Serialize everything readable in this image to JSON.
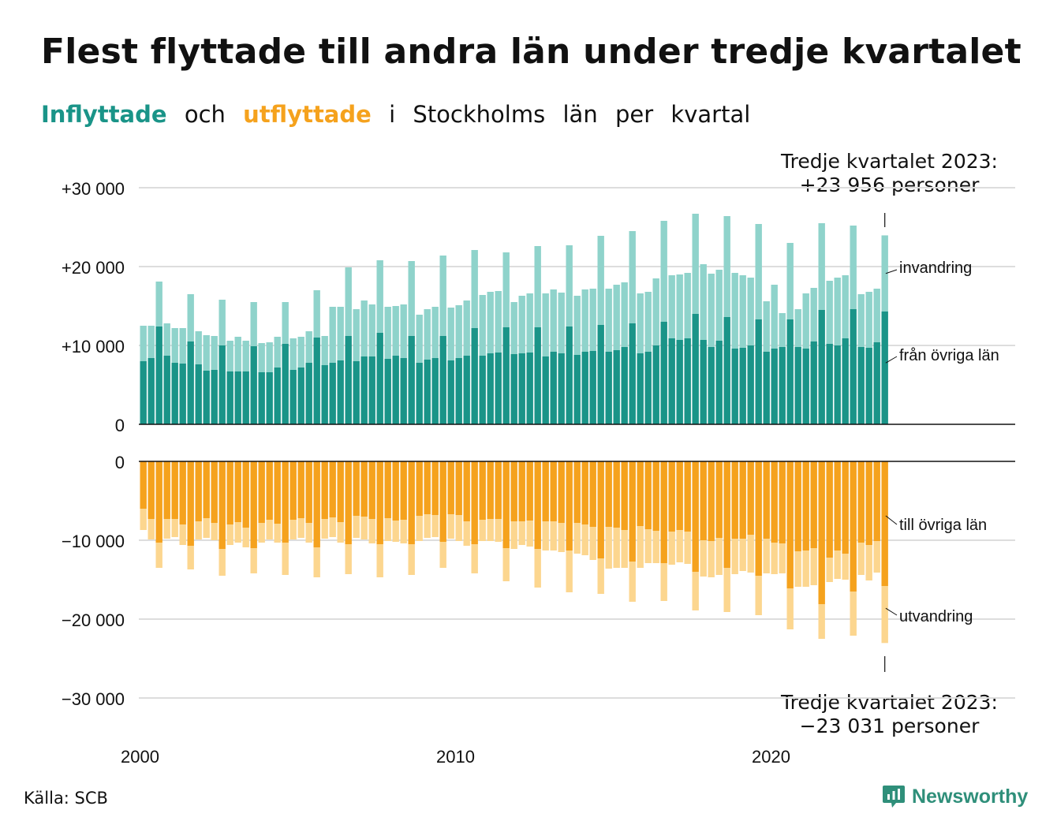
{
  "title": "Flest flyttade till andra län under tredje kvartalet",
  "subtitle": {
    "in_label": "Inflyttade",
    "och": "och",
    "out_label": "utflyttade",
    "rest": [
      "i",
      "Stockholms",
      "län",
      "per",
      "kvartal"
    ]
  },
  "colors": {
    "in_dark": "#1a9488",
    "in_light": "#8fd3cb",
    "out_dark": "#f5a21d",
    "out_light": "#fcd68f",
    "grid": "#dddddd"
  },
  "annotations": {
    "top_line1": "Tredje kvartalet 2023:",
    "top_line2": "+23 956 personer",
    "bottom_line1": "Tredje kvartalet 2023:",
    "bottom_line2": "−23 031 personer"
  },
  "source": "Källa: SCB",
  "brand": {
    "name": "Newsworthy",
    "icon": "newsworthy-logo-icon"
  },
  "chart_data": [
    {
      "type": "bar",
      "stacked": true,
      "categories": [
        "2000 Q1",
        "2000 Q2",
        "2000 Q3",
        "2000 Q4",
        "2001 Q1",
        "2001 Q2",
        "2001 Q3",
        "2001 Q4",
        "2002 Q1",
        "2002 Q2",
        "2002 Q3",
        "2002 Q4",
        "2003 Q1",
        "2003 Q2",
        "2003 Q3",
        "2003 Q4",
        "2004 Q1",
        "2004 Q2",
        "2004 Q3",
        "2004 Q4",
        "2005 Q1",
        "2005 Q2",
        "2005 Q3",
        "2005 Q4",
        "2006 Q1",
        "2006 Q2",
        "2006 Q3",
        "2006 Q4",
        "2007 Q1",
        "2007 Q2",
        "2007 Q3",
        "2007 Q4",
        "2008 Q1",
        "2008 Q2",
        "2008 Q3",
        "2008 Q4",
        "2009 Q1",
        "2009 Q2",
        "2009 Q3",
        "2009 Q4",
        "2010 Q1",
        "2010 Q2",
        "2010 Q3",
        "2010 Q4",
        "2011 Q1",
        "2011 Q2",
        "2011 Q3",
        "2011 Q4",
        "2012 Q1",
        "2012 Q2",
        "2012 Q3",
        "2012 Q4",
        "2013 Q1",
        "2013 Q2",
        "2013 Q3",
        "2013 Q4",
        "2014 Q1",
        "2014 Q2",
        "2014 Q3",
        "2014 Q4",
        "2015 Q1",
        "2015 Q2",
        "2015 Q3",
        "2015 Q4",
        "2016 Q1",
        "2016 Q2",
        "2016 Q3",
        "2016 Q4",
        "2017 Q1",
        "2017 Q2",
        "2017 Q3",
        "2017 Q4",
        "2018 Q1",
        "2018 Q2",
        "2018 Q3",
        "2018 Q4",
        "2019 Q1",
        "2019 Q2",
        "2019 Q3",
        "2019 Q4",
        "2020 Q1",
        "2020 Q2",
        "2020 Q3",
        "2020 Q4",
        "2021 Q1",
        "2021 Q2",
        "2021 Q3",
        "2021 Q4",
        "2022 Q1",
        "2022 Q2",
        "2022 Q3",
        "2022 Q4",
        "2023 Q1",
        "2023 Q2",
        "2023 Q3"
      ],
      "x_ticks": [
        "2000",
        "2010",
        "2020"
      ],
      "ylim": [
        0,
        30000
      ],
      "y_ticks": [
        "+30 000",
        "+20 000",
        "+10 000",
        "0"
      ],
      "series": [
        {
          "name": "från övriga län",
          "values": [
            8000,
            8400,
            12400,
            8700,
            7800,
            7700,
            10500,
            7600,
            6800,
            6900,
            10000,
            6700,
            6700,
            6700,
            9900,
            6600,
            6600,
            7200,
            10200,
            6900,
            7200,
            7800,
            11000,
            7500,
            7800,
            8100,
            11200,
            8000,
            8600,
            8600,
            11600,
            8300,
            8700,
            8400,
            11200,
            7800,
            8200,
            8400,
            11200,
            8100,
            8400,
            8700,
            12200,
            8700,
            9000,
            9100,
            12300,
            8900,
            9000,
            9100,
            12300,
            8600,
            9200,
            9000,
            12400,
            8800,
            9200,
            9300,
            12600,
            9200,
            9400,
            9800,
            12800,
            9000,
            9200,
            10000,
            13000,
            10900,
            10700,
            10900,
            14000,
            10700,
            9800,
            10600,
            13600,
            9600,
            9700,
            10000,
            13300,
            9200,
            9600,
            9800,
            13300,
            9800,
            9600,
            10500,
            14500,
            10200,
            10000,
            10900,
            14600,
            9800,
            9700,
            10400,
            14300
          ]
        },
        {
          "name": "invandring",
          "values": [
            4500,
            4100,
            5700,
            4100,
            4400,
            4500,
            6000,
            4200,
            4500,
            4300,
            5800,
            3900,
            4400,
            3900,
            5600,
            3700,
            3800,
            3900,
            5300,
            4000,
            3900,
            4000,
            6000,
            3700,
            7100,
            6800,
            8700,
            6600,
            7100,
            6600,
            9200,
            6600,
            6300,
            6800,
            9500,
            6100,
            6400,
            6500,
            10200,
            6700,
            6700,
            7000,
            9900,
            7700,
            7800,
            7800,
            9500,
            6600,
            7300,
            7500,
            10300,
            8000,
            7900,
            7700,
            10300,
            7500,
            7900,
            7900,
            11300,
            8000,
            8300,
            8200,
            11700,
            7600,
            7600,
            8500,
            12800,
            8000,
            8300,
            8300,
            12700,
            9600,
            9300,
            9000,
            12800,
            9600,
            9200,
            8600,
            12100,
            6400,
            8100,
            4300,
            9700,
            4800,
            7000,
            6800,
            11000,
            8000,
            8600,
            8000,
            10600,
            6700,
            7100,
            6800,
            9656
          ]
        }
      ]
    },
    {
      "type": "bar",
      "stacked": true,
      "categories": [
        "2000 Q1",
        "2000 Q2",
        "2000 Q3",
        "2000 Q4",
        "2001 Q1",
        "2001 Q2",
        "2001 Q3",
        "2001 Q4",
        "2002 Q1",
        "2002 Q2",
        "2002 Q3",
        "2002 Q4",
        "2003 Q1",
        "2003 Q2",
        "2003 Q3",
        "2003 Q4",
        "2004 Q1",
        "2004 Q2",
        "2004 Q3",
        "2004 Q4",
        "2005 Q1",
        "2005 Q2",
        "2005 Q3",
        "2005 Q4",
        "2006 Q1",
        "2006 Q2",
        "2006 Q3",
        "2006 Q4",
        "2007 Q1",
        "2007 Q2",
        "2007 Q3",
        "2007 Q4",
        "2008 Q1",
        "2008 Q2",
        "2008 Q3",
        "2008 Q4",
        "2009 Q1",
        "2009 Q2",
        "2009 Q3",
        "2009 Q4",
        "2010 Q1",
        "2010 Q2",
        "2010 Q3",
        "2010 Q4",
        "2011 Q1",
        "2011 Q2",
        "2011 Q3",
        "2011 Q4",
        "2012 Q1",
        "2012 Q2",
        "2012 Q3",
        "2012 Q4",
        "2013 Q1",
        "2013 Q2",
        "2013 Q3",
        "2013 Q4",
        "2014 Q1",
        "2014 Q2",
        "2014 Q3",
        "2014 Q4",
        "2015 Q1",
        "2015 Q2",
        "2015 Q3",
        "2015 Q4",
        "2016 Q1",
        "2016 Q2",
        "2016 Q3",
        "2016 Q4",
        "2017 Q1",
        "2017 Q2",
        "2017 Q3",
        "2017 Q4",
        "2018 Q1",
        "2018 Q2",
        "2018 Q3",
        "2018 Q4",
        "2019 Q1",
        "2019 Q2",
        "2019 Q3",
        "2019 Q4",
        "2020 Q1",
        "2020 Q2",
        "2020 Q3",
        "2020 Q4",
        "2021 Q1",
        "2021 Q2",
        "2021 Q3",
        "2021 Q4",
        "2022 Q1",
        "2022 Q2",
        "2022 Q3",
        "2022 Q4",
        "2023 Q1",
        "2023 Q2",
        "2023 Q3"
      ],
      "x_ticks": [
        "2000",
        "2010",
        "2020"
      ],
      "ylim": [
        -30000,
        0
      ],
      "y_ticks": [
        "0",
        "−10 000",
        "−20 000",
        "−30 000"
      ],
      "series": [
        {
          "name": "till övriga län",
          "values": [
            -6000,
            -7300,
            -10300,
            -7300,
            -7300,
            -8000,
            -10700,
            -7600,
            -7200,
            -7800,
            -11100,
            -8000,
            -7700,
            -8400,
            -11000,
            -7800,
            -7400,
            -7900,
            -10300,
            -7400,
            -7200,
            -7800,
            -10900,
            -7300,
            -7100,
            -7700,
            -10500,
            -6900,
            -7000,
            -7300,
            -10500,
            -7200,
            -7500,
            -7400,
            -10500,
            -6900,
            -6700,
            -6800,
            -10200,
            -6700,
            -6800,
            -7600,
            -10500,
            -7400,
            -7300,
            -7300,
            -11000,
            -7600,
            -7600,
            -7500,
            -11100,
            -7600,
            -7600,
            -7800,
            -11300,
            -7800,
            -8000,
            -8300,
            -12300,
            -8300,
            -8400,
            -8700,
            -12700,
            -8200,
            -8600,
            -8800,
            -12900,
            -8900,
            -8700,
            -8900,
            -14000,
            -10000,
            -10100,
            -9700,
            -13500,
            -9800,
            -9800,
            -9300,
            -14500,
            -9800,
            -10300,
            -10400,
            -16100,
            -11400,
            -11300,
            -11000,
            -18100,
            -12200,
            -11300,
            -11700,
            -16500,
            -10300,
            -10600,
            -10100,
            -15800
          ]
        },
        {
          "name": "utvandring",
          "values": [
            -2700,
            -2600,
            -3200,
            -2500,
            -2300,
            -2600,
            -3000,
            -2300,
            -2500,
            -2200,
            -3400,
            -2600,
            -2600,
            -2500,
            -3200,
            -2500,
            -2500,
            -2400,
            -4100,
            -2500,
            -2500,
            -2500,
            -3800,
            -2500,
            -2500,
            -2600,
            -3800,
            -2800,
            -2900,
            -3100,
            -4200,
            -2900,
            -2700,
            -3000,
            -3900,
            -3200,
            -3000,
            -2800,
            -3300,
            -3100,
            -3300,
            -3100,
            -3700,
            -2700,
            -2800,
            -2900,
            -4200,
            -3500,
            -3000,
            -3300,
            -4900,
            -3700,
            -3700,
            -3700,
            -5300,
            -3900,
            -3900,
            -4200,
            -4500,
            -5300,
            -5100,
            -4800,
            -5100,
            -5300,
            -4300,
            -4100,
            -4800,
            -4200,
            -4100,
            -4100,
            -4900,
            -4600,
            -4600,
            -4700,
            -5600,
            -4500,
            -4100,
            -4800,
            -5000,
            -4400,
            -4000,
            -3800,
            -5200,
            -4500,
            -4600,
            -4700,
            -4400,
            -3100,
            -3600,
            -3300,
            -5600,
            -4100,
            -4500,
            -4000,
            -7231
          ]
        }
      ]
    }
  ]
}
